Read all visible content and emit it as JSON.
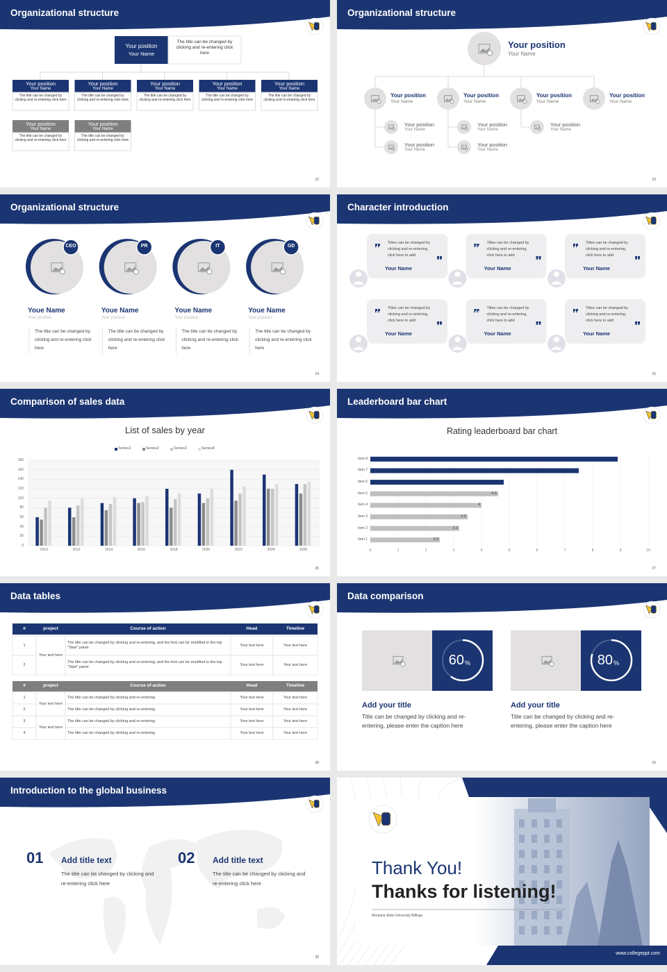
{
  "slides": [
    {
      "title": "Organizational structure",
      "page": "22",
      "top": {
        "position": "Your position",
        "name": "Your Name",
        "text": "The title can be changed by clicking and re-entering click here"
      },
      "boxes": [
        {
          "position": "Your position",
          "name": "Your Name",
          "text": "The title can be changed by clicking and re-entering click here"
        },
        {
          "position": "Your position",
          "name": "Your Name",
          "text": "The title can be changed by clicking and re-entering click here"
        },
        {
          "position": "Your position",
          "name": "Your Name",
          "text": "The title can be changed by clicking and re-entering click here"
        },
        {
          "position": "Your position",
          "name": "Your Name",
          "text": "The title can be changed by clicking and re-entering click here"
        },
        {
          "position": "Your position",
          "name": "Your Name",
          "text": "The title can be changed by clicking and re-entering click here"
        },
        {
          "position": "Your position",
          "name": "Your Name",
          "text": "The title can be changed by clicking and re-entering click here"
        },
        {
          "position": "Your position",
          "name": "Your Name",
          "text": "The title can be changed by clicking and re-entering click here"
        }
      ]
    },
    {
      "title": "Organizational structure",
      "page": "23",
      "top": {
        "position": "Your position",
        "name": "Your Name"
      },
      "members": [
        {
          "position": "Your position",
          "name": "Your Name",
          "subs": [
            {
              "position": "Your position",
              "name": "Your Name"
            },
            {
              "position": "Your position",
              "name": "Your Name"
            }
          ]
        },
        {
          "position": "Your position",
          "name": "Your Name",
          "subs": [
            {
              "position": "Your position",
              "name": "Your Name"
            },
            {
              "position": "Your position",
              "name": "Your Name"
            }
          ]
        },
        {
          "position": "Your position",
          "name": "Your Name",
          "subs": [
            {
              "position": "Your position",
              "name": "Your Name"
            }
          ]
        },
        {
          "position": "Your position",
          "name": "Your Name",
          "subs": []
        }
      ]
    },
    {
      "title": "Organizational structure",
      "page": "24",
      "people": [
        {
          "badge": "CEO",
          "name": "Youe Name",
          "position": "Your position",
          "text": "The title can be changed by clicking and re-entering click here"
        },
        {
          "badge": "PR",
          "name": "Youe Name",
          "position": "Your position",
          "text": "The title can be changed by clicking and re-entering click here"
        },
        {
          "badge": "IT",
          "name": "Youe Name",
          "position": "Your position",
          "text": "The title can be changed by clicking and re-entering click here"
        },
        {
          "badge": "GD",
          "name": "Youe Name",
          "position": "Your position",
          "text": "The title can be changed by clicking and re-entering click here"
        }
      ]
    },
    {
      "title": "Character introduction",
      "page": "25",
      "cards": [
        {
          "text": "Titles can be changed by clicking and re-entering, click here to add",
          "name": "Your Name"
        },
        {
          "text": "Titles can be changed by clicking and re-entering, click here to add",
          "name": "Your Name"
        },
        {
          "text": "Titles can be changed by clicking and re-entering, click here to add",
          "name": "Your Name"
        },
        {
          "text": "Titles can be changed by clicking and re-entering, click here to add",
          "name": "Your Name"
        },
        {
          "text": "Titles can be changed by clicking and re-entering, click here to add",
          "name": "Your Name"
        },
        {
          "text": "Titles can be changed by clicking and re-entering, click here to add",
          "name": "Your Name"
        }
      ]
    },
    {
      "title": "Comparison of sales data",
      "page": "26",
      "chart_data": {
        "type": "bar",
        "title": "List of sales by year",
        "categories": [
          "2010",
          "2012",
          "2014",
          "2016",
          "2018",
          "2020",
          "2022",
          "2024",
          "2026"
        ],
        "series": [
          {
            "name": "Series1",
            "color": "#1b3572",
            "values": [
              60,
              80,
              90,
              100,
              120,
              110,
              160,
              150,
              130
            ]
          },
          {
            "name": "Series2",
            "color": "#8c8c8c",
            "values": [
              55,
              60,
              75,
              90,
              80,
              90,
              95,
              120,
              110
            ]
          },
          {
            "name": "Series3",
            "color": "#c4c4c4",
            "values": [
              80,
              85,
              88,
              92,
              98,
              100,
              110,
              120,
              130
            ]
          },
          {
            "name": "Series4",
            "color": "#dcdcdc",
            "values": [
              95,
              100,
              102,
              105,
              110,
              120,
              125,
              130,
              135
            ]
          }
        ],
        "ylim": [
          0,
          180
        ],
        "yticks": [
          0,
          20,
          40,
          60,
          80,
          100,
          120,
          140,
          160,
          180
        ],
        "grid": true,
        "legend": "top"
      }
    },
    {
      "title": "Leaderboard bar chart",
      "page": "27",
      "chart_data": {
        "type": "barh",
        "title": "Rating leaderboard bar chart",
        "categories": [
          "Item 1",
          "Item 2",
          "Item 3",
          "Item 4",
          "Item 5",
          "Item 6",
          "Item 7",
          "Item 8"
        ],
        "values": [
          2.5,
          3.2,
          3.5,
          4,
          4.6,
          4.8,
          7.5,
          8.9
        ],
        "value_labels": [
          "2.5",
          "3.2",
          "3.5",
          "4",
          "4.6",
          null,
          null,
          null
        ],
        "colors": [
          "#bfbfbf",
          "#bfbfbf",
          "#bfbfbf",
          "#bfbfbf",
          "#bfbfbf",
          "#1b3572",
          "#1b3572",
          "#1b3572"
        ],
        "xlim": [
          0,
          10
        ],
        "xticks": [
          0,
          1,
          2,
          3,
          4,
          5,
          6,
          7,
          8,
          9,
          10
        ],
        "grid": true
      }
    },
    {
      "title": "Data tables",
      "page": "28",
      "tables": [
        {
          "header": [
            "#",
            "project",
            "Course of action",
            "Head",
            "Timeline"
          ],
          "rows": [
            [
              "1",
              "Your text here",
              "The title can be changed by clicking and re-entering, and the font can be modified in the top \"Start\" panel",
              "Your text here",
              "Your text here"
            ],
            [
              "2",
              null,
              "The title can be changed by clicking and re-entering, and the font can be modified in the top \"Start\" panel",
              "Your text here",
              "Your text here"
            ]
          ]
        },
        {
          "header": [
            "#",
            "project",
            "Course of action",
            "Head",
            "Timeline"
          ],
          "rows": [
            [
              "1",
              "Your text here",
              "The title can be changed by clicking and re-entering",
              "Your text here",
              "Your text here"
            ],
            [
              "2",
              null,
              "The title can be changed by clicking and re-entering",
              "Your text here",
              "Your text here"
            ],
            [
              "3",
              "Your text here",
              "The title can be changed by clicking and re-entering",
              "Your text here",
              "Your text here"
            ],
            [
              "4",
              null,
              "The title can be changed by clicking and re-entering",
              "Your text here",
              "Your text here"
            ]
          ]
        }
      ]
    },
    {
      "title": "Data comparison",
      "page": "29",
      "items": [
        {
          "value": 60,
          "unit": "%",
          "title": "Add your title",
          "text": "Title can be changed by clicking and re-entering, please enter the caption here"
        },
        {
          "value": 80,
          "unit": "%",
          "title": "Add your title",
          "text": "Title can be changed by clicking and re-entering, please enter the caption here"
        }
      ]
    },
    {
      "title": "Introduction to the global business",
      "page": "30",
      "items": [
        {
          "number": "01",
          "title": "Add title text",
          "text": "The title can be changed by clicking and re-entering click here"
        },
        {
          "number": "02",
          "title": "Add title text",
          "text": "The title can be changed by clicking and re-entering click here"
        }
      ]
    },
    {
      "thanks": "Thank You!",
      "subtitle": "Thanks for listening!",
      "university": "Montana State University Billings",
      "url": "www.collegeppt.com"
    }
  ]
}
